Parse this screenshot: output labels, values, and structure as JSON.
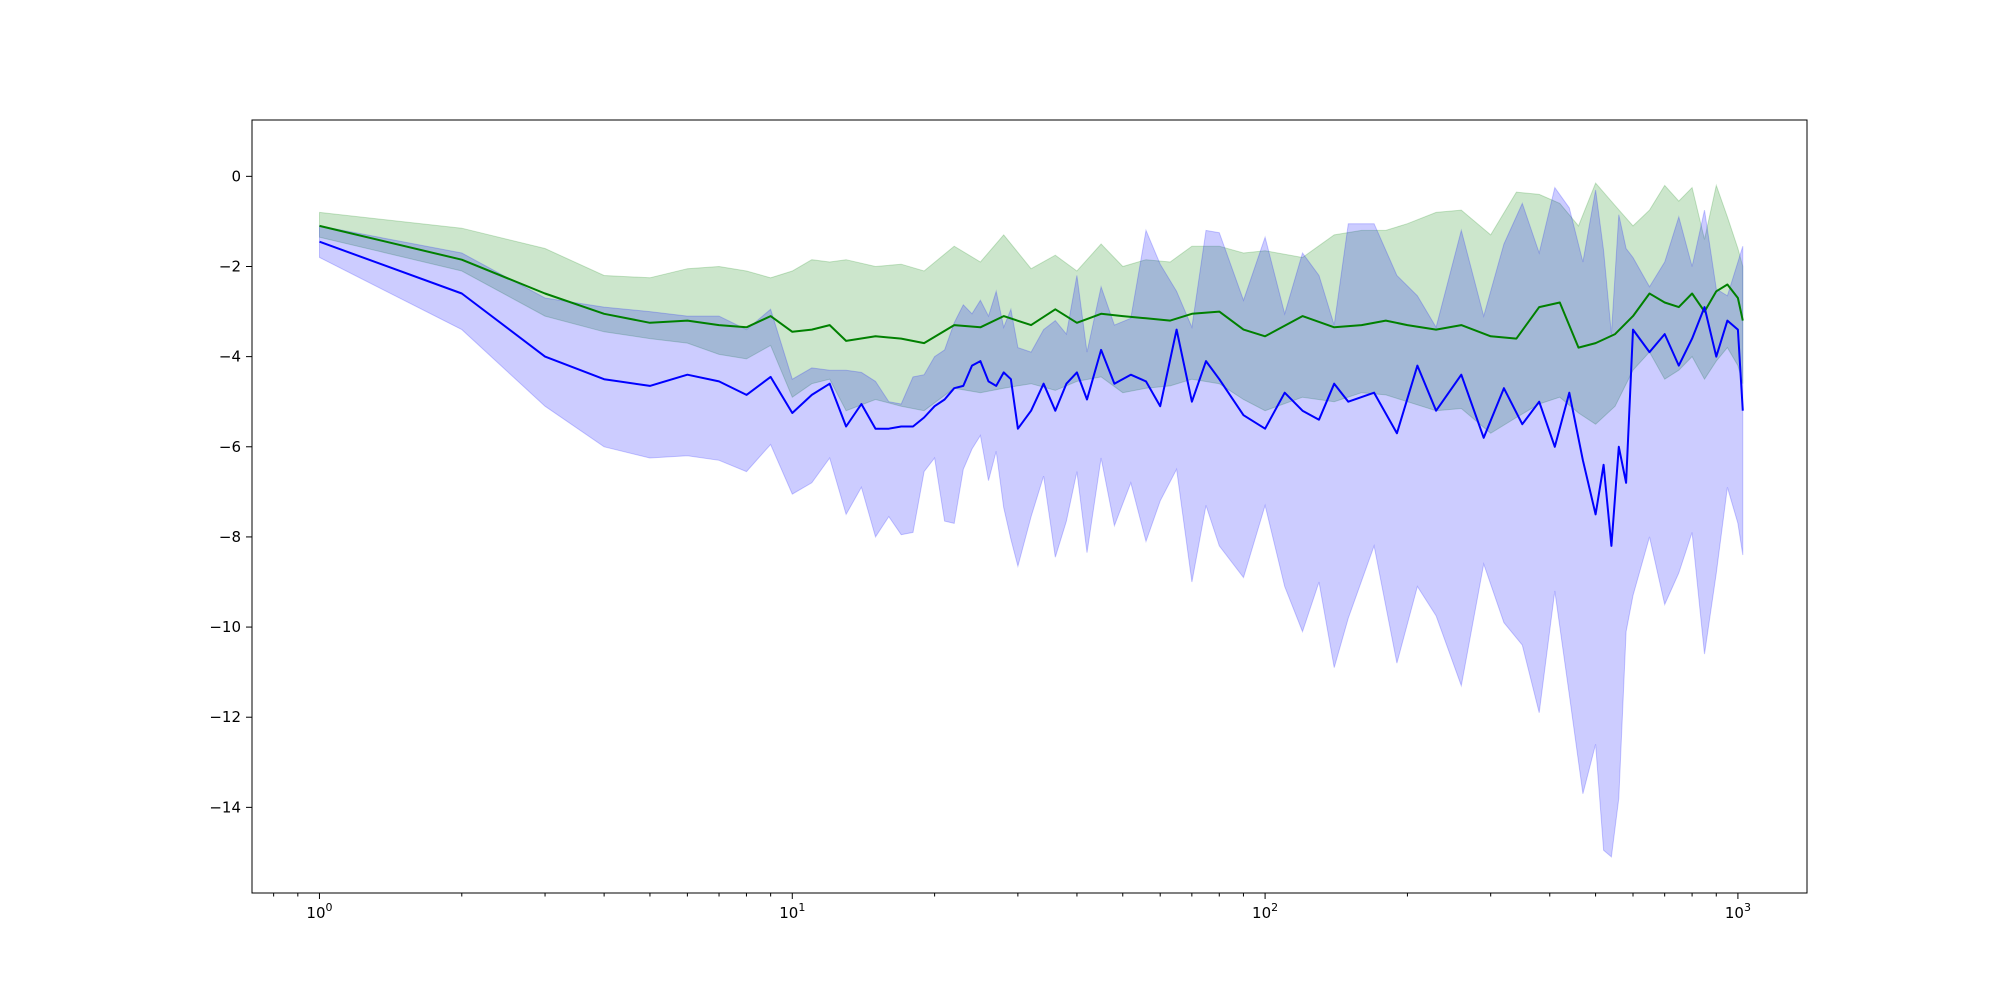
{
  "chart_data": {
    "type": "line",
    "title": "",
    "xlabel": "",
    "ylabel": "",
    "x_scale": "log",
    "xlim": [
      0.72,
      1400
    ],
    "ylim": [
      -15.9,
      1.25
    ],
    "grid": false,
    "legend": "none",
    "x_ticks": [
      {
        "value": 1,
        "base": "10",
        "exp": "0"
      },
      {
        "value": 10,
        "base": "10",
        "exp": "1"
      },
      {
        "value": 100,
        "base": "10",
        "exp": "2"
      },
      {
        "value": 1000,
        "base": "10",
        "exp": "3"
      }
    ],
    "y_ticks": [
      {
        "value": 0,
        "label": "0"
      },
      {
        "value": -2,
        "label": "−2"
      },
      {
        "value": -4,
        "label": "−4"
      },
      {
        "value": -6,
        "label": "−6"
      },
      {
        "value": -8,
        "label": "−8"
      },
      {
        "value": -10,
        "label": "−10"
      },
      {
        "value": -12,
        "label": "−12"
      },
      {
        "value": -14,
        "label": "−14"
      }
    ],
    "series": [
      {
        "color": "#008000",
        "band_color": "#008000",
        "band_opacity": 0.2,
        "x": [
          1,
          2,
          3,
          4,
          5,
          6,
          7,
          8,
          9,
          10,
          11,
          12,
          13,
          15,
          17,
          19,
          22,
          25,
          28,
          32,
          36,
          40,
          45,
          50,
          56,
          63,
          70,
          80,
          90,
          100,
          120,
          140,
          160,
          180,
          200,
          230,
          260,
          300,
          340,
          380,
          420,
          460,
          500,
          550,
          600,
          650,
          700,
          750,
          800,
          850,
          900,
          950,
          1000,
          1024
        ],
        "mean": [
          -1.1,
          -1.85,
          -2.6,
          -3.05,
          -3.25,
          -3.2,
          -3.3,
          -3.35,
          -3.1,
          -3.45,
          -3.4,
          -3.3,
          -3.65,
          -3.55,
          -3.6,
          -3.7,
          -3.3,
          -3.35,
          -3.1,
          -3.3,
          -2.95,
          -3.25,
          -3.05,
          -3.1,
          -3.15,
          -3.2,
          -3.05,
          -3.0,
          -3.4,
          -3.55,
          -3.1,
          -3.35,
          -3.3,
          -3.2,
          -3.3,
          -3.4,
          -3.3,
          -3.55,
          -3.6,
          -2.9,
          -2.8,
          -3.8,
          -3.7,
          -3.5,
          -3.1,
          -2.6,
          -2.8,
          -2.9,
          -2.6,
          -3.0,
          -2.55,
          -2.4,
          -2.7,
          -3.2
        ],
        "upper": [
          -0.8,
          -1.15,
          -1.6,
          -2.2,
          -2.25,
          -2.05,
          -2.0,
          -2.1,
          -2.25,
          -2.1,
          -1.85,
          -1.9,
          -1.85,
          -2.0,
          -1.95,
          -2.1,
          -1.55,
          -1.9,
          -1.3,
          -2.05,
          -1.75,
          -2.1,
          -1.5,
          -2.0,
          -1.85,
          -1.9,
          -1.55,
          -1.55,
          -1.7,
          -1.65,
          -1.8,
          -1.3,
          -1.2,
          -1.2,
          -1.05,
          -0.8,
          -0.75,
          -1.3,
          -0.35,
          -0.4,
          -0.6,
          -1.1,
          -0.15,
          -0.65,
          -1.1,
          -0.75,
          -0.2,
          -0.55,
          -0.25,
          -1.4,
          -0.2,
          -0.9,
          -1.6,
          -2.0
        ],
        "lower": [
          -1.35,
          -2.1,
          -3.1,
          -3.45,
          -3.6,
          -3.7,
          -3.95,
          -4.05,
          -3.75,
          -4.9,
          -4.6,
          -4.5,
          -5.2,
          -4.95,
          -5.1,
          -5.2,
          -4.7,
          -4.8,
          -4.7,
          -4.6,
          -4.75,
          -4.55,
          -4.45,
          -4.8,
          -4.7,
          -4.65,
          -4.5,
          -4.6,
          -4.95,
          -5.2,
          -4.9,
          -5.0,
          -4.8,
          -4.85,
          -5.0,
          -5.2,
          -5.15,
          -5.7,
          -5.35,
          -5.05,
          -4.9,
          -5.25,
          -5.5,
          -5.1,
          -4.3,
          -3.9,
          -4.5,
          -4.3,
          -4.0,
          -4.5,
          -4.1,
          -3.8,
          -4.2,
          -4.6
        ]
      },
      {
        "color": "#0000ff",
        "band_color": "#0000ff",
        "band_opacity": 0.2,
        "x": [
          1,
          2,
          3,
          4,
          5,
          6,
          7,
          8,
          9,
          10,
          11,
          12,
          13,
          14,
          15,
          16,
          17,
          18,
          19,
          20,
          21,
          22,
          23,
          24,
          25,
          26,
          27,
          28,
          29,
          30,
          32,
          34,
          36,
          38,
          40,
          42,
          45,
          48,
          52,
          56,
          60,
          65,
          70,
          75,
          80,
          90,
          100,
          110,
          120,
          130,
          140,
          150,
          170,
          190,
          210,
          230,
          260,
          290,
          320,
          350,
          380,
          410,
          440,
          470,
          500,
          520,
          540,
          560,
          580,
          600,
          650,
          700,
          750,
          800,
          850,
          900,
          950,
          1000,
          1024
        ],
        "mean": [
          -1.45,
          -2.6,
          -4.0,
          -4.5,
          -4.65,
          -4.4,
          -4.55,
          -4.85,
          -4.45,
          -5.25,
          -4.85,
          -4.6,
          -5.55,
          -5.05,
          -5.6,
          -5.6,
          -5.55,
          -5.55,
          -5.35,
          -5.1,
          -4.95,
          -4.7,
          -4.65,
          -4.2,
          -4.1,
          -4.55,
          -4.65,
          -4.35,
          -4.5,
          -5.6,
          -5.2,
          -4.6,
          -5.2,
          -4.6,
          -4.35,
          -4.95,
          -3.85,
          -4.6,
          -4.4,
          -4.55,
          -5.1,
          -3.4,
          -5.0,
          -4.1,
          -4.5,
          -5.3,
          -5.6,
          -4.8,
          -5.2,
          -5.4,
          -4.6,
          -5.0,
          -4.8,
          -5.7,
          -4.2,
          -5.2,
          -4.4,
          -5.8,
          -4.7,
          -5.5,
          -5.0,
          -6.0,
          -4.8,
          -6.3,
          -7.5,
          -6.4,
          -8.2,
          -6.0,
          -6.8,
          -3.4,
          -3.9,
          -3.5,
          -4.2,
          -3.6,
          -2.9,
          -4.0,
          -3.2,
          -3.4,
          -5.2
        ],
        "upper": [
          -1.1,
          -1.7,
          -2.7,
          -2.9,
          -3.0,
          -3.1,
          -3.1,
          -3.4,
          -2.95,
          -4.5,
          -4.25,
          -4.3,
          -4.3,
          -4.35,
          -4.55,
          -5.0,
          -5.05,
          -4.45,
          -4.4,
          -4.0,
          -3.85,
          -3.25,
          -2.85,
          -3.05,
          -2.75,
          -3.1,
          -2.55,
          -3.35,
          -2.95,
          -3.8,
          -3.9,
          -3.4,
          -3.2,
          -3.5,
          -2.2,
          -3.9,
          -2.45,
          -3.3,
          -3.15,
          -1.2,
          -1.95,
          -2.55,
          -3.35,
          -1.2,
          -1.25,
          -2.75,
          -1.35,
          -3.05,
          -1.7,
          -2.2,
          -3.3,
          -1.05,
          -1.05,
          -2.2,
          -2.65,
          -3.35,
          -1.2,
          -3.1,
          -1.5,
          -0.6,
          -1.7,
          -0.25,
          -0.7,
          -1.9,
          -0.3,
          -1.65,
          -3.5,
          -0.85,
          -1.6,
          -1.8,
          -2.45,
          -1.9,
          -0.9,
          -2.0,
          -0.75,
          -2.5,
          -2.65,
          -1.9,
          -1.55
        ],
        "lower": [
          -1.8,
          -3.4,
          -5.1,
          -6.0,
          -6.25,
          -6.2,
          -6.3,
          -6.55,
          -5.95,
          -7.05,
          -6.8,
          -6.25,
          -7.5,
          -6.9,
          -8.0,
          -7.55,
          -7.95,
          -7.9,
          -6.55,
          -6.25,
          -7.65,
          -7.7,
          -6.5,
          -6.05,
          -5.75,
          -6.75,
          -6.1,
          -7.35,
          -8.05,
          -8.65,
          -7.55,
          -6.65,
          -8.45,
          -7.65,
          -6.55,
          -8.35,
          -6.25,
          -7.75,
          -6.8,
          -8.1,
          -7.2,
          -6.5,
          -9.0,
          -7.3,
          -8.2,
          -8.9,
          -7.3,
          -9.1,
          -10.1,
          -9.0,
          -10.9,
          -9.8,
          -8.2,
          -10.8,
          -9.1,
          -9.75,
          -11.3,
          -8.6,
          -9.9,
          -10.4,
          -11.9,
          -9.2,
          -11.5,
          -13.7,
          -12.6,
          -14.95,
          -15.1,
          -13.8,
          -10.1,
          -9.3,
          -8.0,
          -9.5,
          -8.8,
          -7.9,
          -10.6,
          -8.8,
          -6.9,
          -7.7,
          -8.4
        ]
      }
    ]
  }
}
